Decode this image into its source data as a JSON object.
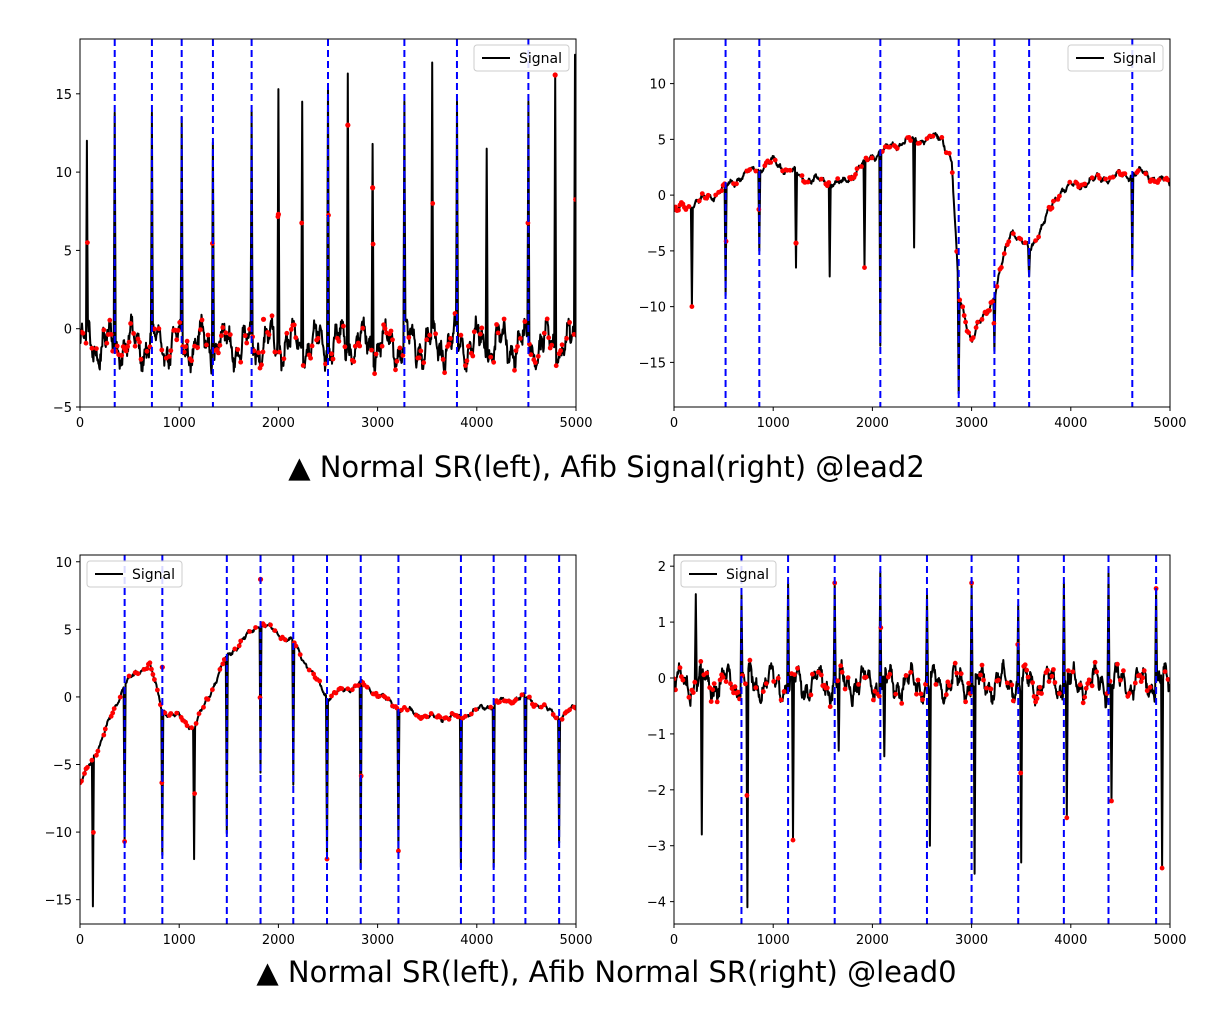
{
  "captions": {
    "top": "▲ Normal SR(left), Afib Signal(right) @lead2",
    "bottom": "▲ Normal SR(left), Afib Normal SR(right) @lead0"
  },
  "colors": {
    "signal": "#000000",
    "marker": "#ff0000",
    "vline": "#0000ff"
  },
  "chart_data": [
    {
      "type": "line",
      "title": "",
      "legend": "Signal",
      "legend_loc": "top-right",
      "xlim": [
        0,
        5000
      ],
      "ylim": [
        -5,
        18.5
      ],
      "xticks": [
        0,
        1000,
        2000,
        3000,
        4000,
        5000
      ],
      "yticks": [
        -5,
        0,
        5,
        10,
        15
      ],
      "vlines": [
        350,
        725,
        1025,
        1340,
        1730,
        2500,
        3270,
        3800,
        4520
      ],
      "peaks": [
        [
          70,
          12
        ],
        [
          350,
          13.8
        ],
        [
          725,
          13.8
        ],
        [
          1025,
          13.5
        ],
        [
          1340,
          11.9
        ],
        [
          1730,
          13.9
        ],
        [
          2000,
          15.3
        ],
        [
          2240,
          14.5
        ],
        [
          2500,
          15.5
        ],
        [
          2700,
          16.3
        ],
        [
          2950,
          11.8
        ],
        [
          3270,
          14.5
        ],
        [
          3550,
          17
        ],
        [
          3800,
          14.5
        ],
        [
          4100,
          11.5
        ],
        [
          4520,
          14.5
        ],
        [
          4790,
          16.3
        ],
        [
          4990,
          17.5
        ]
      ],
      "dips": [],
      "base": -1,
      "noise": 1.6,
      "redmarks": [
        [
          1850,
          0.6
        ],
        [
          2000,
          7.3
        ],
        [
          2700,
          13
        ],
        [
          2950,
          9
        ],
        [
          4790,
          16.2
        ]
      ],
      "series": [
        {
          "name": "Signal"
        }
      ]
    },
    {
      "type": "line",
      "title": "",
      "legend": "Signal",
      "legend_loc": "top-right",
      "xlim": [
        0,
        5000
      ],
      "ylim": [
        -19,
        14
      ],
      "xticks": [
        0,
        1000,
        2000,
        3000,
        4000,
        5000
      ],
      "yticks": [
        -15,
        -10,
        -5,
        0,
        5,
        10
      ],
      "vlines": [
        520,
        860,
        2080,
        2870,
        3230,
        3580,
        4620
      ],
      "peaks": [
        [
          2080,
          6.2
        ]
      ],
      "dips": [
        [
          180,
          -10
        ],
        [
          520,
          -9
        ],
        [
          860,
          -5
        ],
        [
          1230,
          -6.5
        ],
        [
          1570,
          -7.3
        ],
        [
          1920,
          -6.5
        ],
        [
          2080,
          -13.5
        ],
        [
          2420,
          -4.7
        ],
        [
          2870,
          -17.8
        ],
        [
          3230,
          -14
        ],
        [
          3580,
          -7.3
        ],
        [
          4620,
          -6.7
        ]
      ],
      "baseline_knots": [
        [
          0,
          -1.5
        ],
        [
          400,
          0
        ],
        [
          700,
          1.8
        ],
        [
          1000,
          3
        ],
        [
          1300,
          1.5
        ],
        [
          1700,
          1
        ],
        [
          2000,
          3.5
        ],
        [
          2300,
          4.8
        ],
        [
          2700,
          5.2
        ],
        [
          2800,
          3
        ],
        [
          2870,
          -9
        ],
        [
          3000,
          -13
        ],
        [
          3230,
          -9
        ],
        [
          3400,
          -3
        ],
        [
          3580,
          -5
        ],
        [
          3900,
          0.5
        ],
        [
          4300,
          1.5
        ],
        [
          4700,
          2
        ],
        [
          5000,
          1
        ]
      ],
      "noise": 0.5,
      "redmarks": [
        [
          1230,
          -4.3
        ]
      ],
      "series": [
        {
          "name": "Signal"
        }
      ]
    },
    {
      "type": "line",
      "title": "",
      "legend": "Signal",
      "legend_loc": "top-left",
      "xlim": [
        0,
        5000
      ],
      "ylim": [
        -16.8,
        10.5
      ],
      "xticks": [
        0,
        1000,
        2000,
        3000,
        4000,
        5000
      ],
      "yticks": [
        -15,
        -10,
        -5,
        0,
        5,
        10
      ],
      "vlines": [
        450,
        830,
        1480,
        1820,
        2150,
        2490,
        2830,
        3210,
        3840,
        4170,
        4490,
        4830
      ],
      "peaks": [
        [
          450,
          5.2
        ],
        [
          1820,
          9
        ],
        [
          2490,
          5
        ],
        [
          4490,
          3
        ]
      ],
      "dips": [
        [
          130,
          -15.5
        ],
        [
          450,
          -10.7
        ],
        [
          830,
          -11.7
        ],
        [
          1150,
          -12
        ],
        [
          1480,
          -10.1
        ],
        [
          1820,
          -5.6
        ],
        [
          2150,
          -6.5
        ],
        [
          2490,
          -12
        ],
        [
          2830,
          -12.7
        ],
        [
          3210,
          -11.4
        ],
        [
          3840,
          -12.6
        ],
        [
          4170,
          -12.6
        ],
        [
          4490,
          -12
        ],
        [
          4830,
          -10.8
        ]
      ],
      "baseline_knots": [
        [
          0,
          -6.5
        ],
        [
          200,
          -3.5
        ],
        [
          450,
          1
        ],
        [
          700,
          2.5
        ],
        [
          830,
          -1
        ],
        [
          1000,
          -1.5
        ],
        [
          1150,
          -2.3
        ],
        [
          1480,
          3
        ],
        [
          1820,
          5.5
        ],
        [
          2150,
          4
        ],
        [
          2490,
          0
        ],
        [
          2830,
          1
        ],
        [
          3210,
          -0.8
        ],
        [
          3500,
          -1.5
        ],
        [
          3840,
          -1.5
        ],
        [
          4170,
          -0.5
        ],
        [
          4490,
          0
        ],
        [
          4830,
          -1.5
        ],
        [
          5000,
          -0.8
        ]
      ],
      "noise": 0.3,
      "redmarks": [
        [
          830,
          2.2
        ],
        [
          1820,
          8.7
        ]
      ],
      "series": [
        {
          "name": "Signal"
        }
      ]
    },
    {
      "type": "line",
      "title": "",
      "legend": "Signal",
      "legend_loc": "top-left",
      "xlim": [
        0,
        5000
      ],
      "ylim": [
        -4.4,
        2.2
      ],
      "xticks": [
        0,
        1000,
        2000,
        3000,
        4000,
        5000
      ],
      "yticks": [
        -4,
        -3,
        -2,
        -1,
        0,
        1,
        2
      ],
      "vlines": [
        680,
        1150,
        1620,
        2080,
        2550,
        3000,
        3470,
        3930,
        4380,
        4860
      ],
      "peaks": [
        [
          220,
          1.5
        ],
        [
          680,
          1.5
        ],
        [
          1150,
          1.7
        ],
        [
          1620,
          1.7
        ],
        [
          2080,
          1.9
        ],
        [
          2550,
          1.5
        ],
        [
          3000,
          1.7
        ],
        [
          3470,
          1.3
        ],
        [
          3930,
          1.7
        ],
        [
          4380,
          1.9
        ],
        [
          4860,
          1.6
        ]
      ],
      "dips": [
        [
          280,
          -2.8
        ],
        [
          740,
          -4.1
        ],
        [
          1200,
          -2.9
        ],
        [
          1660,
          -1.3
        ],
        [
          2120,
          -1.4
        ],
        [
          2580,
          -3
        ],
        [
          3030,
          -3.5
        ],
        [
          3500,
          -3.3
        ],
        [
          3960,
          -2.5
        ],
        [
          4410,
          -2.2
        ],
        [
          4920,
          -3.4
        ]
      ],
      "base": -0.1,
      "noise": 0.35,
      "redmarks": [],
      "series": [
        {
          "name": "Signal"
        }
      ]
    }
  ]
}
